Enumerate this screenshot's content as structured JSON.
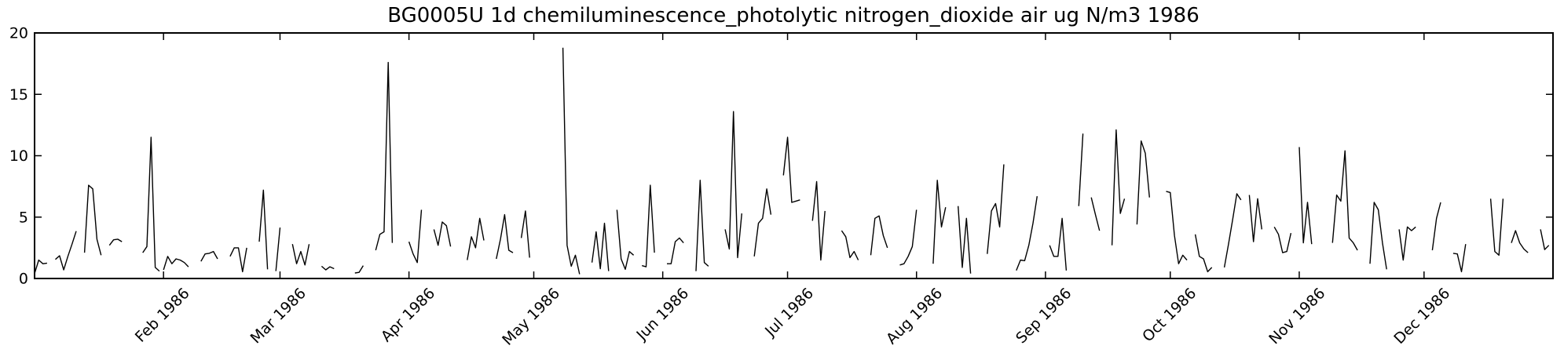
{
  "chart_data": {
    "type": "line",
    "title": "BG0005U 1d chemiluminescence_photolytic nitrogen_dioxide air ug N/m3 1986",
    "xlabel": "",
    "ylabel": "",
    "ylim": [
      0,
      20
    ],
    "yticks": [
      0,
      5,
      10,
      15,
      20
    ],
    "ytick_labels": [
      "0",
      "5",
      "10",
      "15",
      "20"
    ],
    "x_unit": "day_of_year_1986",
    "x_range": [
      1,
      366
    ],
    "xticks_days": [
      32,
      60,
      91,
      121,
      152,
      182,
      213,
      244,
      274,
      305,
      335
    ],
    "xtick_labels": [
      "Feb 1986",
      "Mar 1986",
      "Apr 1986",
      "May 1986",
      "Jun 1986",
      "Jul 1986",
      "Aug 1986",
      "Sep 1986",
      "Oct 1986",
      "Nov 1986",
      "Dec 1986"
    ],
    "xtick_rotation_deg": 45,
    "grid": false,
    "legend": "none",
    "line_color": "#000000",
    "axis_color": "#000000",
    "background_color": "#ffffff",
    "series": [
      {
        "name": "nitrogen_dioxide ug N/m3",
        "note": "daily values, [day_of_year, value]; separate segments indicate missing-data gaps",
        "segments": [
          [
            [
              1,
              0.4
            ],
            [
              2,
              1.5
            ],
            [
              3,
              1.2
            ],
            [
              4,
              1.25
            ]
          ],
          [
            [
              6,
              1.55
            ],
            [
              7,
              1.85
            ],
            [
              8,
              0.7
            ],
            [
              9,
              1.8
            ],
            [
              10,
              2.8
            ],
            [
              11,
              3.85
            ]
          ],
          [
            [
              13,
              2.1
            ],
            [
              14,
              7.6
            ],
            [
              15,
              7.3
            ],
            [
              16,
              3.2
            ],
            [
              17,
              1.9
            ]
          ],
          [
            [
              19,
              2.7
            ],
            [
              20,
              3.15
            ],
            [
              21,
              3.2
            ],
            [
              22,
              3.0
            ]
          ],
          [
            [
              27,
              2.1
            ],
            [
              28,
              2.6
            ],
            [
              29,
              11.5
            ],
            [
              30,
              0.9
            ],
            [
              31,
              0.6
            ]
          ],
          [
            [
              32,
              0.7
            ],
            [
              33,
              1.8
            ],
            [
              34,
              1.2
            ],
            [
              35,
              1.6
            ],
            [
              36,
              1.5
            ],
            [
              37,
              1.3
            ],
            [
              38,
              0.95
            ]
          ],
          [
            [
              41,
              1.4
            ],
            [
              42,
              2.0
            ],
            [
              43,
              2.05
            ],
            [
              44,
              2.2
            ],
            [
              45,
              1.6
            ]
          ],
          [
            [
              48,
              1.8
            ],
            [
              49,
              2.5
            ],
            [
              50,
              2.5
            ],
            [
              51,
              0.55
            ],
            [
              52,
              2.5
            ]
          ],
          [
            [
              55,
              3.0
            ],
            [
              56,
              7.2
            ],
            [
              57,
              0.75
            ]
          ],
          [
            [
              59,
              0.6
            ],
            [
              60,
              4.15
            ]
          ],
          [
            [
              63,
              2.8
            ],
            [
              64,
              1.2
            ],
            [
              65,
              2.2
            ],
            [
              66,
              1.1
            ],
            [
              67,
              2.8
            ]
          ],
          [
            [
              70,
              1.0
            ],
            [
              71,
              0.7
            ],
            [
              72,
              0.95
            ],
            [
              73,
              0.8
            ]
          ],
          [
            [
              78,
              0.45
            ],
            [
              79,
              0.5
            ],
            [
              80,
              1.05
            ]
          ],
          [
            [
              83,
              2.3
            ],
            [
              84,
              3.6
            ],
            [
              85,
              3.8
            ],
            [
              86,
              17.6
            ],
            [
              87,
              2.9
            ]
          ],
          [
            [
              91,
              3.0
            ],
            [
              92,
              2.0
            ],
            [
              93,
              1.3
            ],
            [
              94,
              5.6
            ]
          ],
          [
            [
              97,
              4.0
            ],
            [
              98,
              2.7
            ],
            [
              99,
              4.6
            ],
            [
              100,
              4.3
            ],
            [
              101,
              2.6
            ]
          ],
          [
            [
              105,
              1.5
            ],
            [
              106,
              3.4
            ],
            [
              107,
              2.5
            ],
            [
              108,
              4.9
            ],
            [
              109,
              3.1
            ]
          ],
          [
            [
              112,
              1.6
            ],
            [
              113,
              3.2
            ],
            [
              114,
              5.2
            ],
            [
              115,
              2.3
            ],
            [
              116,
              2.1
            ]
          ],
          [
            [
              118,
              3.3
            ],
            [
              119,
              5.5
            ],
            [
              120,
              1.7
            ]
          ],
          [
            [
              128,
              18.8
            ],
            [
              129,
              2.7
            ],
            [
              130,
              1.0
            ],
            [
              131,
              1.9
            ],
            [
              132,
              0.35
            ]
          ],
          [
            [
              135,
              1.3
            ],
            [
              136,
              3.8
            ],
            [
              137,
              0.8
            ],
            [
              138,
              4.5
            ],
            [
              139,
              0.6
            ]
          ],
          [
            [
              141,
              5.6
            ],
            [
              142,
              1.6
            ],
            [
              143,
              0.75
            ],
            [
              144,
              2.2
            ],
            [
              145,
              1.9
            ]
          ],
          [
            [
              147,
              1.05
            ],
            [
              148,
              0.95
            ],
            [
              149,
              7.6
            ],
            [
              150,
              2.1
            ]
          ],
          [
            [
              153,
              1.2
            ],
            [
              154,
              1.2
            ],
            [
              155,
              3.0
            ],
            [
              156,
              3.3
            ],
            [
              157,
              2.9
            ]
          ],
          [
            [
              160,
              0.6
            ],
            [
              161,
              8.0
            ],
            [
              162,
              1.3
            ],
            [
              163,
              1.0
            ]
          ],
          [
            [
              167,
              4.0
            ],
            [
              168,
              2.4
            ],
            [
              169,
              13.6
            ],
            [
              170,
              1.7
            ],
            [
              171,
              5.3
            ]
          ],
          [
            [
              174,
              1.8
            ],
            [
              175,
              4.5
            ],
            [
              176,
              4.9
            ],
            [
              177,
              7.3
            ],
            [
              178,
              5.2
            ]
          ],
          [
            [
              181,
              8.4
            ],
            [
              182,
              11.5
            ],
            [
              183,
              6.2
            ],
            [
              184,
              6.3
            ],
            [
              185,
              6.4
            ]
          ],
          [
            [
              188,
              4.7
            ],
            [
              189,
              7.9
            ],
            [
              190,
              1.5
            ],
            [
              191,
              5.5
            ]
          ],
          [
            [
              195,
              3.9
            ],
            [
              196,
              3.4
            ],
            [
              197,
              1.7
            ],
            [
              198,
              2.2
            ],
            [
              199,
              1.5
            ]
          ],
          [
            [
              202,
              1.9
            ],
            [
              203,
              4.9
            ],
            [
              204,
              5.1
            ],
            [
              205,
              3.5
            ],
            [
              206,
              2.5
            ]
          ],
          [
            [
              209,
              1.1
            ],
            [
              210,
              1.2
            ],
            [
              211,
              1.8
            ],
            [
              212,
              2.6
            ],
            [
              213,
              5.6
            ]
          ],
          [
            [
              217,
              1.2
            ],
            [
              218,
              8.0
            ],
            [
              219,
              4.2
            ],
            [
              220,
              5.8
            ]
          ],
          [
            [
              223,
              5.9
            ],
            [
              224,
              0.9
            ],
            [
              225,
              4.9
            ],
            [
              226,
              0.4
            ]
          ],
          [
            [
              230,
              2.0
            ],
            [
              231,
              5.5
            ],
            [
              232,
              6.1
            ],
            [
              233,
              4.2
            ],
            [
              234,
              9.3
            ]
          ],
          [
            [
              237,
              0.65
            ],
            [
              238,
              1.5
            ],
            [
              239,
              1.45
            ],
            [
              240,
              2.7
            ],
            [
              241,
              4.5
            ],
            [
              242,
              6.7
            ]
          ],
          [
            [
              245,
              2.7
            ],
            [
              246,
              1.8
            ],
            [
              247,
              1.8
            ],
            [
              248,
              4.9
            ],
            [
              249,
              0.65
            ]
          ],
          [
            [
              252,
              5.9
            ],
            [
              253,
              11.8
            ]
          ],
          [
            [
              255,
              6.6
            ],
            [
              256,
              5.2
            ],
            [
              257,
              3.9
            ]
          ],
          [
            [
              260,
              2.7
            ],
            [
              261,
              12.1
            ],
            [
              262,
              5.3
            ],
            [
              263,
              6.5
            ]
          ],
          [
            [
              266,
              4.4
            ],
            [
              267,
              11.2
            ],
            [
              268,
              10.2
            ],
            [
              269,
              6.6
            ]
          ],
          [
            [
              273,
              7.1
            ],
            [
              274,
              7.0
            ],
            [
              275,
              3.5
            ],
            [
              276,
              1.2
            ],
            [
              277,
              1.9
            ],
            [
              278,
              1.5
            ]
          ],
          [
            [
              280,
              3.6
            ],
            [
              281,
              1.8
            ],
            [
              282,
              1.6
            ],
            [
              283,
              0.55
            ],
            [
              284,
              0.9
            ]
          ],
          [
            [
              287,
              0.9
            ],
            [
              288,
              2.8
            ],
            [
              289,
              4.8
            ],
            [
              290,
              6.9
            ],
            [
              291,
              6.4
            ]
          ],
          [
            [
              293,
              6.8
            ],
            [
              294,
              3.0
            ],
            [
              295,
              6.5
            ],
            [
              296,
              4.0
            ]
          ],
          [
            [
              299,
              4.2
            ],
            [
              300,
              3.6
            ],
            [
              301,
              2.1
            ],
            [
              302,
              2.2
            ],
            [
              303,
              3.7
            ]
          ],
          [
            [
              305,
              10.7
            ],
            [
              306,
              2.9
            ],
            [
              307,
              6.2
            ],
            [
              308,
              2.8
            ]
          ],
          [
            [
              313,
              2.9
            ],
            [
              314,
              6.8
            ],
            [
              315,
              6.3
            ],
            [
              316,
              10.4
            ],
            [
              317,
              3.3
            ],
            [
              318,
              2.9
            ],
            [
              319,
              2.3
            ]
          ],
          [
            [
              322,
              1.2
            ],
            [
              323,
              6.2
            ],
            [
              324,
              5.6
            ],
            [
              325,
              2.9
            ],
            [
              326,
              0.75
            ]
          ],
          [
            [
              329,
              4.0
            ],
            [
              330,
              1.5
            ],
            [
              331,
              4.2
            ],
            [
              332,
              3.9
            ],
            [
              333,
              4.2
            ]
          ],
          [
            [
              337,
              2.3
            ],
            [
              338,
              4.9
            ],
            [
              339,
              6.2
            ]
          ],
          [
            [
              342,
              2.05
            ],
            [
              343,
              2.0
            ],
            [
              344,
              0.55
            ],
            [
              345,
              2.8
            ]
          ],
          [
            [
              351,
              6.5
            ],
            [
              352,
              2.2
            ],
            [
              353,
              1.9
            ],
            [
              354,
              6.5
            ]
          ],
          [
            [
              356,
              2.9
            ],
            [
              357,
              3.9
            ],
            [
              358,
              2.9
            ],
            [
              359,
              2.4
            ],
            [
              360,
              2.1
            ]
          ],
          [
            [
              363,
              4.0
            ],
            [
              364,
              2.35
            ],
            [
              365,
              2.7
            ]
          ]
        ]
      }
    ]
  }
}
